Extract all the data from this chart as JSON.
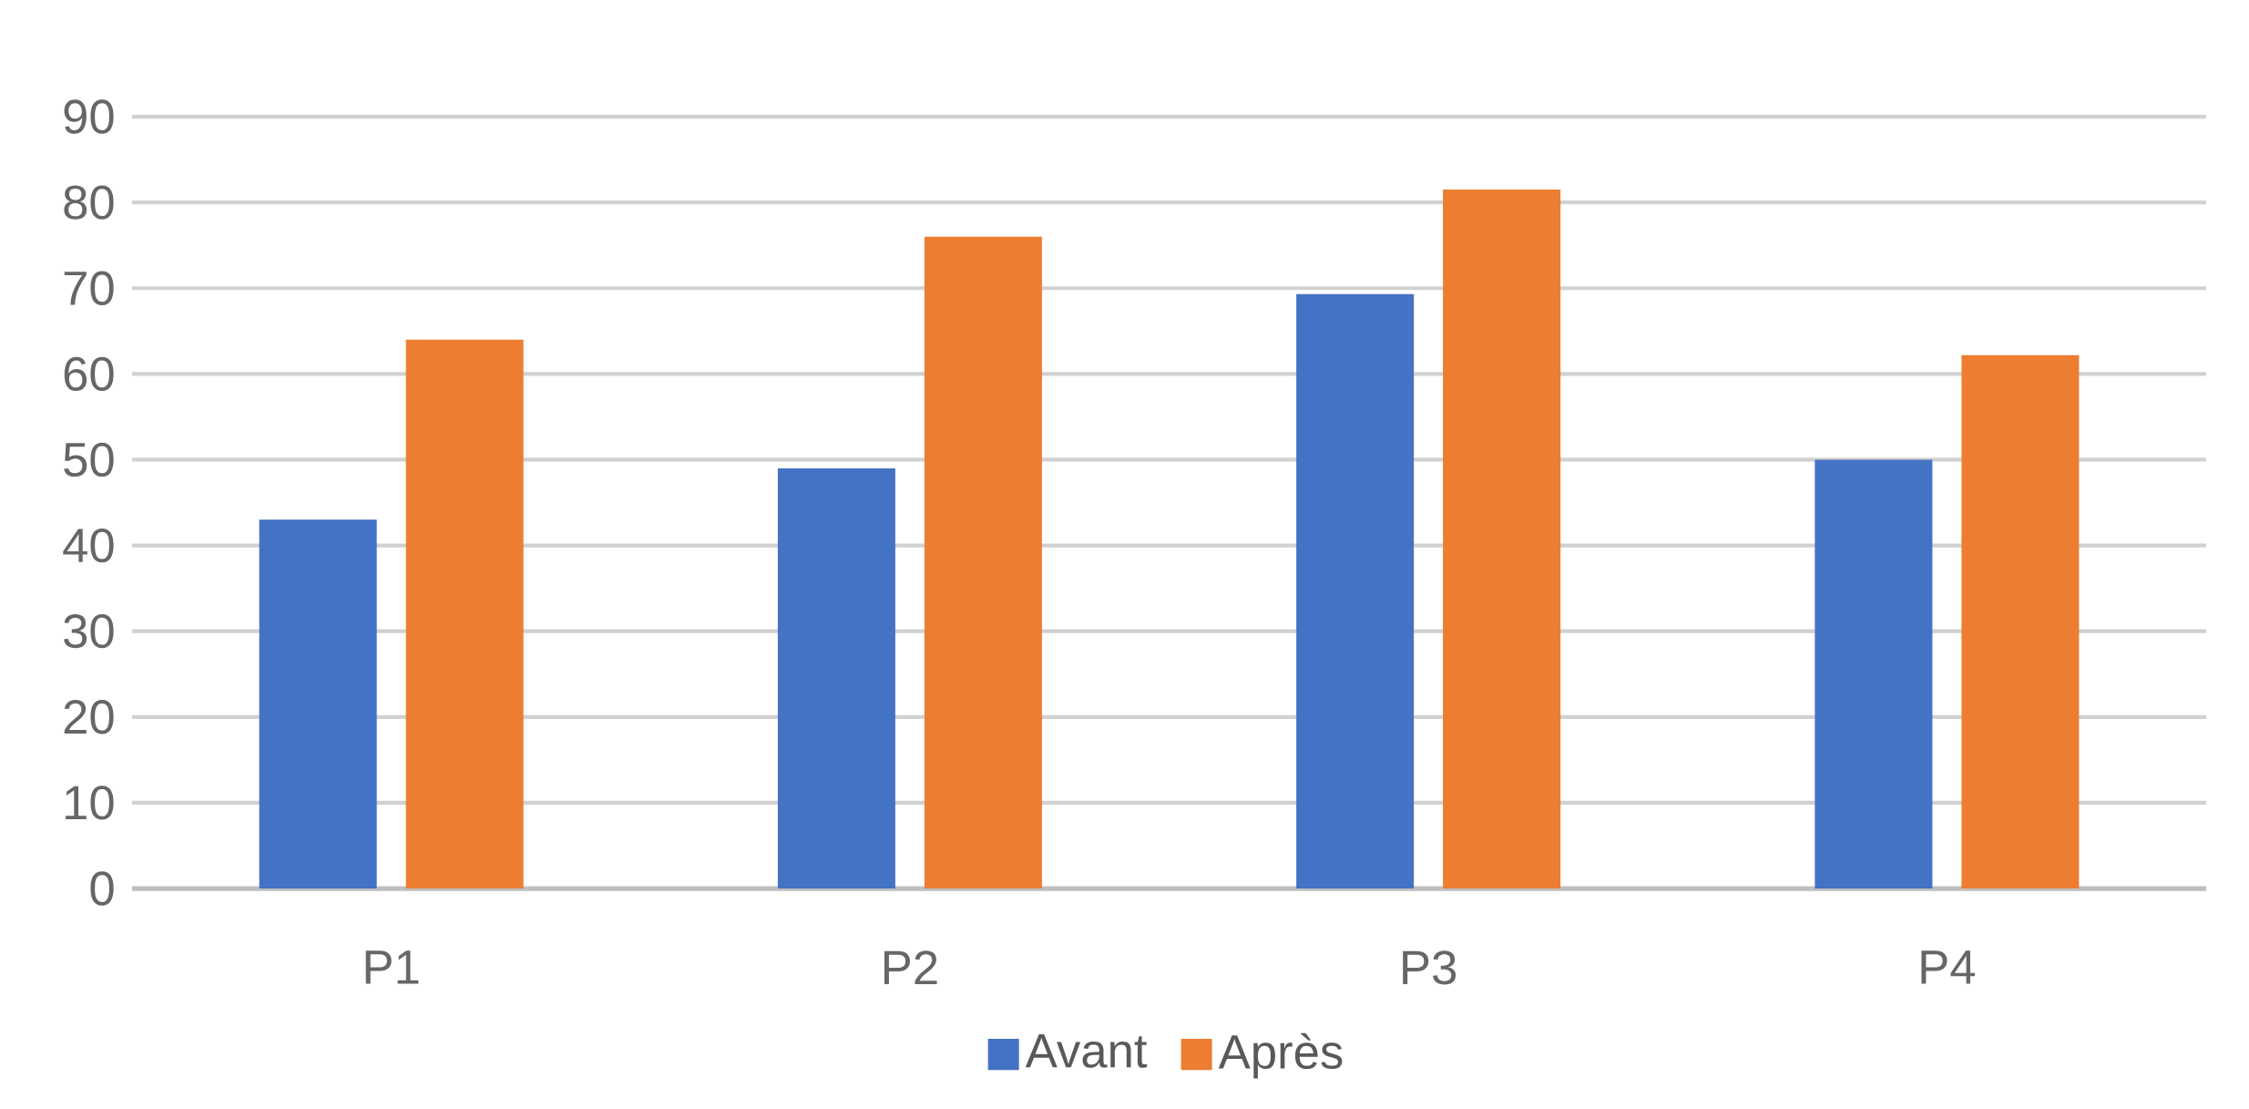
{
  "chart_data": {
    "type": "bar",
    "categories": [
      "P1",
      "P2",
      "P3",
      "P4"
    ],
    "series": [
      {
        "name": "Avant",
        "color": "#4472c4",
        "values": [
          43,
          49,
          69.3,
          50
        ]
      },
      {
        "name": "Après",
        "color": "#ed7d31",
        "values": [
          64,
          76,
          81.5,
          62.2
        ]
      }
    ],
    "ylim": [
      0,
      90
    ],
    "yticks": [
      0,
      10,
      20,
      30,
      40,
      50,
      60,
      70,
      80,
      90
    ],
    "grid": "y",
    "legend": "bottom"
  }
}
